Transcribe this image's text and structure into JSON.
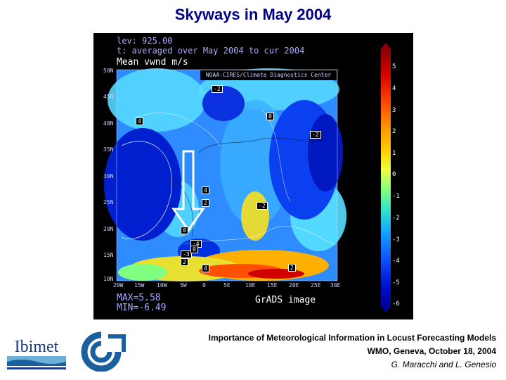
{
  "title": "Skyways in May 2004",
  "map": {
    "header_line1": "lev: 925.00",
    "header_line2": "t: averaged over May 2004 to cur 2004",
    "header_line3": "Mean vwnd m/s",
    "credit": "NOAA-CIRES/Climate Diagnostics Center",
    "lat_labels": [
      "50N",
      "45N",
      "40N",
      "35N",
      "30N",
      "25N",
      "20N",
      "15N",
      "10N"
    ],
    "lon_labels": [
      "20W",
      "15W",
      "10W",
      "5W",
      "0",
      "5E",
      "10E",
      "15E",
      "20E",
      "25E",
      "30E"
    ],
    "max_text": "MAX=5.58",
    "min_text": "MIN=-6.49",
    "grads_text": "GrADS image",
    "contour_labels": [
      "-2",
      "4",
      "0",
      "-2",
      "4",
      "2",
      "-2",
      "0",
      "-4",
      "-3",
      "0",
      "2",
      "4",
      "2"
    ],
    "colorbar_labels": [
      "5",
      "4",
      "3",
      "2",
      "1",
      "0",
      "-1",
      "-2",
      "-3",
      "-4",
      "-5",
      "-6"
    ]
  },
  "footer": {
    "line1": "Importance of Meteorological Information in Locust Forecasting Models",
    "line2": "WMO, Geneva, October 18, 2004",
    "line3": "G. Maracchi and L. Genesio"
  },
  "logos": {
    "ibimet_text": "Ibimet"
  },
  "colors": {
    "title": "#00008b",
    "panel_background": "#000000"
  }
}
